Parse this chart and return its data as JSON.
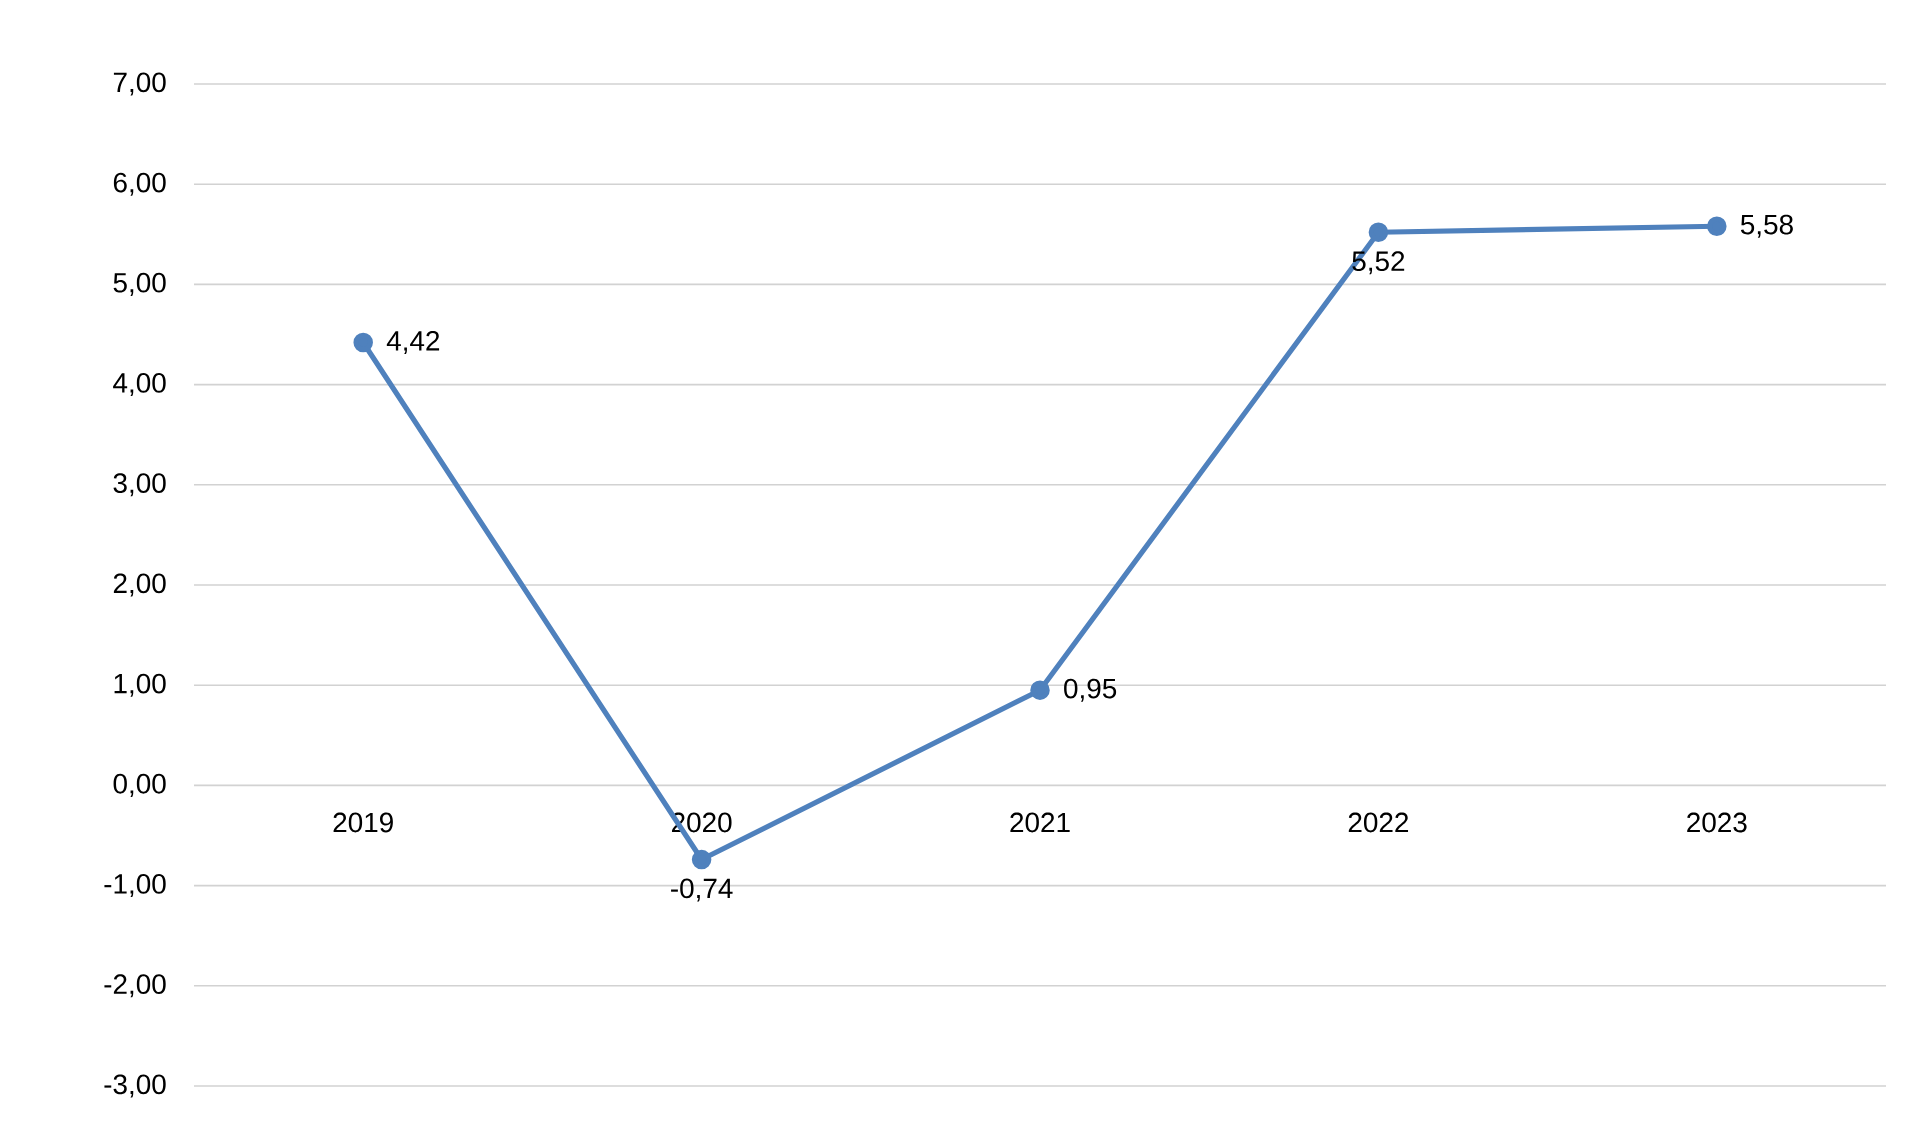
{
  "chart_data": {
    "type": "line",
    "categories": [
      "2019",
      "2020",
      "2021",
      "2022",
      "2023"
    ],
    "series": [
      {
        "color": "#4f81bd",
        "values": [
          4.42,
          -0.74,
          0.95,
          5.52,
          5.58
        ],
        "value_labels": [
          "4,42",
          "-0,74",
          "0,95",
          "5,52",
          "5,58"
        ]
      }
    ],
    "ylim": [
      -3,
      7
    ],
    "yticks": [
      {
        "value": -3,
        "label": "-3,00"
      },
      {
        "value": -2,
        "label": "-2,00"
      },
      {
        "value": -1,
        "label": "-1,00"
      },
      {
        "value": 0,
        "label": "0,00"
      },
      {
        "value": 1,
        "label": "1,00"
      },
      {
        "value": 2,
        "label": "2,00"
      },
      {
        "value": 3,
        "label": "3,00"
      },
      {
        "value": 4,
        "label": "4,00"
      },
      {
        "value": 5,
        "label": "5,00"
      },
      {
        "value": 6,
        "label": "6,00"
      },
      {
        "value": 7,
        "label": "7,00"
      }
    ],
    "grid": "y",
    "marker": "circle",
    "line_style": "solid"
  }
}
